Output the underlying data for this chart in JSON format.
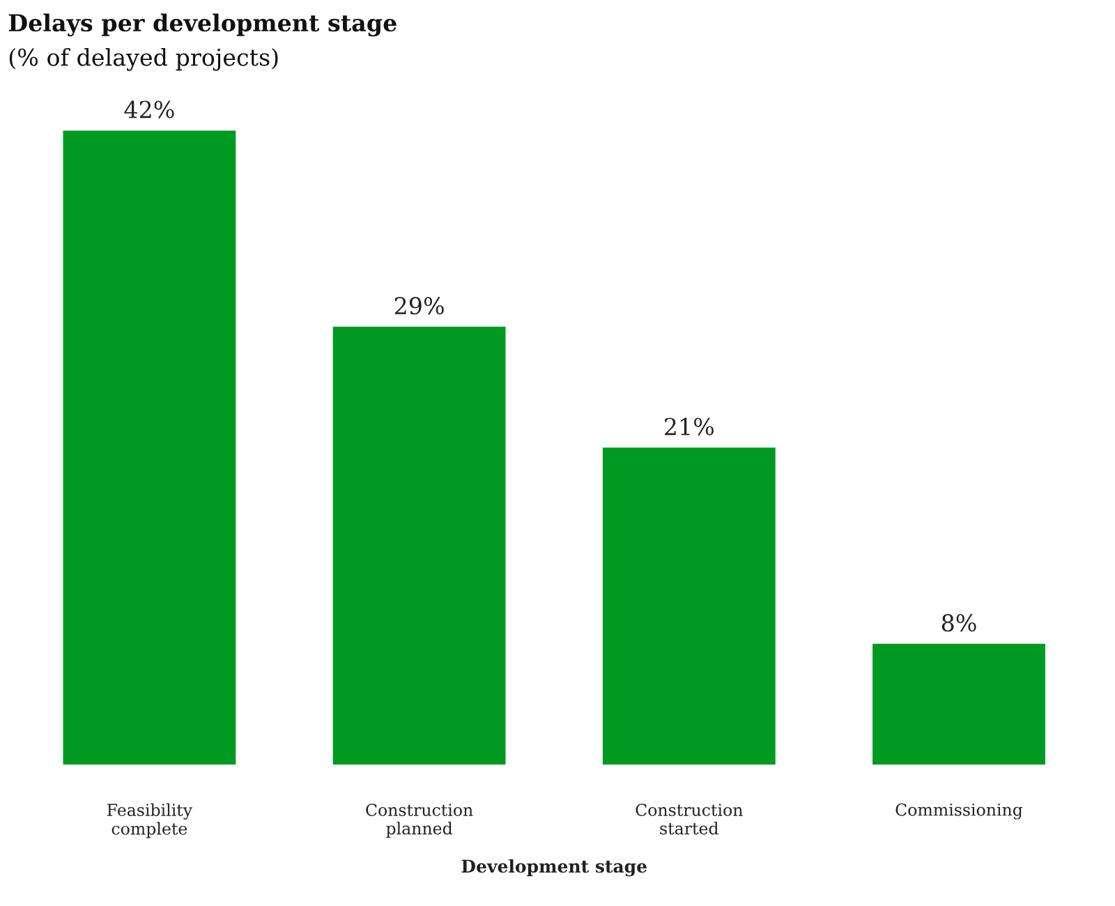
{
  "chart_data": {
    "type": "bar",
    "title": "Delays per development stage",
    "subtitle": "(% of delayed projects)",
    "xlabel": "Development stage",
    "categories": [
      "Feasibility\ncomplete",
      "Construction\nplanned",
      "Construction\nstarted",
      "Commissioning"
    ],
    "values": [
      42,
      29,
      21,
      8
    ],
    "color": "#009a22",
    "value_labels": [
      "42%",
      "29%",
      "21%",
      "8%"
    ],
    "grid": false,
    "legend": false
  }
}
